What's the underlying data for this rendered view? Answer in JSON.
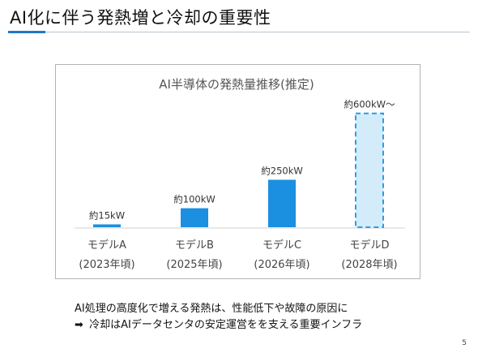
{
  "slide": {
    "title": "AI化に伴う発熱増と冷却の重要性",
    "page_number": "5"
  },
  "caption": {
    "line1": "AI処理の高度化で増える発熱は、性能低下や故障の原因に",
    "line2_arrow": "➡",
    "line2": "冷却はAIデータセンタの安定運営をを支える重要インフラ"
  },
  "colors": {
    "accent": "#1e78c8",
    "bar": "#1b8fe0",
    "bar_projected_fill": "#d4ecfa",
    "bar_projected_border": "#2a9ee6"
  },
  "chart_data": {
    "type": "bar",
    "title": "AI半導体の発熱量推移(推定)",
    "categories": [
      "モデルA",
      "モデルB",
      "モデルC",
      "モデルD"
    ],
    "category_years": [
      "(2023年頃)",
      "(2025年頃)",
      "(2026年頃)",
      "(2028年頃)"
    ],
    "values": [
      15,
      100,
      250,
      600
    ],
    "unit": "kW",
    "data_labels": [
      "約15kW",
      "約100kW",
      "約250kW",
      "約600kW～"
    ],
    "projected": [
      false,
      false,
      false,
      true
    ],
    "ylim": [
      0,
      650
    ],
    "grid": false,
    "legend": "none"
  }
}
